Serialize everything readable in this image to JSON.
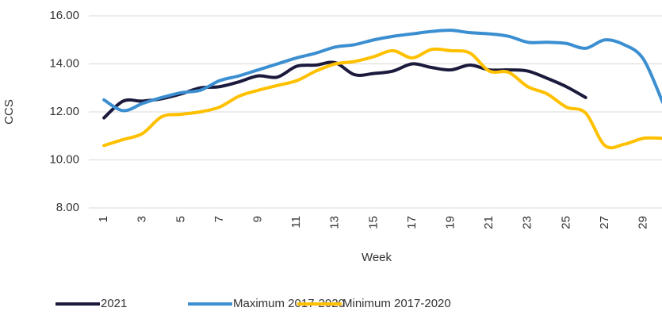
{
  "chart_data": {
    "type": "line",
    "x_label": "Week",
    "y_label": "CCS",
    "categories": [
      "1",
      null,
      "3",
      null,
      "5",
      null,
      "7",
      null,
      "9",
      null,
      "11",
      null,
      "13",
      null,
      "15",
      null,
      "17",
      null,
      "19",
      null,
      "21",
      null,
      "23",
      null,
      "25",
      null,
      "27",
      null,
      "29",
      null
    ],
    "series": [
      {
        "name": "2021",
        "color": "#1b1a3d",
        "values": [
          11.75,
          12.45,
          12.45,
          12.55,
          12.75,
          13.0,
          13.05,
          13.25,
          13.5,
          13.45,
          13.9,
          13.95,
          14.05,
          13.55,
          13.6,
          13.7,
          14.0,
          13.85,
          13.75,
          13.95,
          13.75,
          13.75,
          13.7,
          13.4,
          13.05,
          12.6,
          null,
          null,
          null,
          null
        ]
      },
      {
        "name": "Maximum 2017-2020",
        "color": "#3b8fd1",
        "values": [
          12.5,
          12.05,
          12.35,
          12.6,
          12.8,
          12.9,
          13.3,
          13.5,
          13.75,
          14.0,
          14.25,
          14.45,
          14.7,
          14.8,
          15.0,
          15.15,
          15.25,
          15.35,
          15.4,
          15.3,
          15.25,
          15.15,
          14.9,
          14.9,
          14.85,
          14.65,
          15.0,
          14.8,
          14.2,
          12.4
        ]
      },
      {
        "name": "Minimum 2017-2020",
        "color": "#ffc000",
        "values": [
          10.6,
          10.85,
          11.1,
          11.8,
          11.9,
          12.0,
          12.2,
          12.65,
          12.9,
          13.1,
          13.3,
          13.7,
          14.0,
          14.1,
          14.3,
          14.55,
          14.25,
          14.6,
          14.55,
          14.45,
          13.7,
          13.65,
          13.05,
          12.75,
          12.2,
          11.95,
          10.6,
          10.65,
          10.9,
          10.9
        ]
      }
    ],
    "ylim": [
      8,
      16
    ],
    "yticks": [
      {
        "value": 8,
        "label": "8.00"
      },
      {
        "value": 10,
        "label": "10.00"
      },
      {
        "value": 12,
        "label": "12.00"
      },
      {
        "value": 14,
        "label": "14.00"
      },
      {
        "value": 16,
        "label": "16.00"
      }
    ],
    "grid": true,
    "legend": "bottom"
  }
}
